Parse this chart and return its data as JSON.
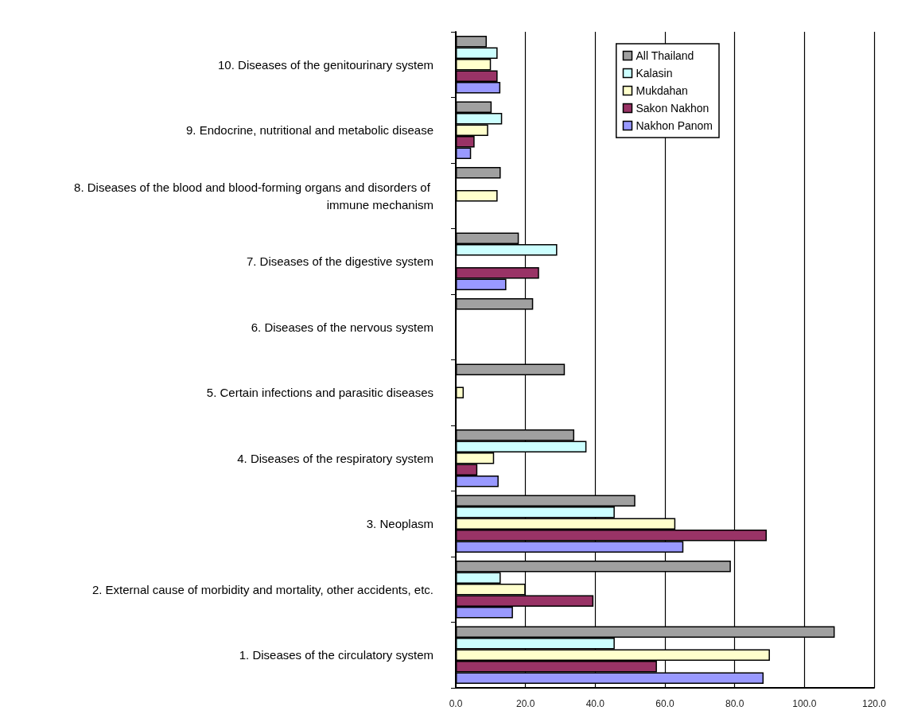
{
  "chart_data": {
    "type": "bar",
    "orientation": "horizontal",
    "categories": [
      "10. Diseases of the genitourinary system",
      "9. Endocrine, nutritional and metabolic disease",
      "8. Diseases of the blood and blood-forming organs and disorders of immune mechanism",
      "7. Diseases of the digestive system",
      "6. Diseases of the nervous system",
      "5. Certain infections and parasitic diseases",
      "4. Diseases of the respiratory system",
      "3. Neoplasm",
      "2. External cause of morbidity and mortality, other accidents, etc.",
      "1. Diseases of the circulatory system"
    ],
    "series": [
      {
        "name": "All Thailand",
        "color": "#a0a0a0",
        "values": [
          8.9,
          10.3,
          12.9,
          18.1,
          22.2,
          31.3,
          34.0,
          51.5,
          78.9,
          108.7
        ]
      },
      {
        "name": "Kalasin",
        "color": "#ccffff",
        "values": [
          12.0,
          13.3,
          null,
          29.1,
          null,
          null,
          37.5,
          45.6,
          12.9,
          45.6
        ]
      },
      {
        "name": "Mukdahan",
        "color": "#ffffcc",
        "values": [
          10.1,
          9.3,
          12.0,
          null,
          null,
          2.3,
          11.0,
          63.0,
          20.0,
          90.1
        ]
      },
      {
        "name": "Sakon Nakhon",
        "color": "#993366",
        "values": [
          12.0,
          5.4,
          null,
          23.9,
          null,
          null,
          6.2,
          89.2,
          39.5,
          57.7
        ]
      },
      {
        "name": "Nakhon Panom",
        "color": "#9999ff",
        "values": [
          12.8,
          4.4,
          null,
          14.5,
          null,
          null,
          12.3,
          65.3,
          16.4,
          88.3
        ]
      }
    ],
    "xlim": [
      0,
      120
    ],
    "xticks": [
      {
        "value": 0,
        "label": "0.0"
      },
      {
        "value": 20,
        "label": "20.0"
      },
      {
        "value": 40,
        "label": "40.0"
      },
      {
        "value": 60,
        "label": "60.0"
      },
      {
        "value": 80,
        "label": "80.0"
      },
      {
        "value": 100,
        "label": "100.0"
      },
      {
        "value": 120,
        "label": "120.0"
      }
    ],
    "grid": "x",
    "legend": "top right"
  }
}
